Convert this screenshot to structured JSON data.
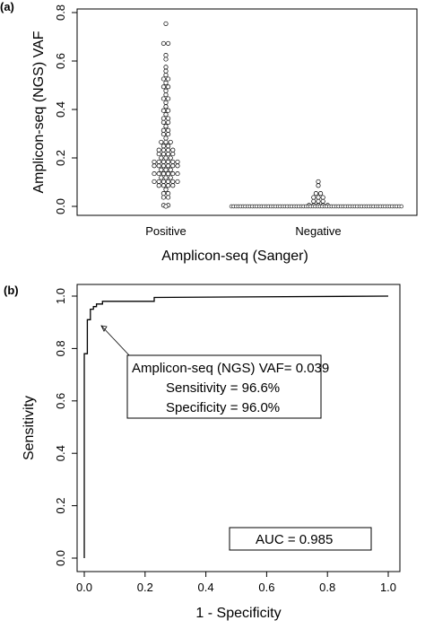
{
  "chart_data": [
    {
      "panel": "(a)",
      "type": "scatter",
      "style": "beeswarm strip chart",
      "categories": [
        "Positive",
        "Negative"
      ],
      "xlabel": "Amplicon-seq (Sanger)",
      "ylabel": "Amplicon-seq (NGS) VAF",
      "ylim": [
        0,
        0.8
      ],
      "yticks": [
        "0.0",
        "0.2",
        "0.4",
        "0.6",
        "0.8"
      ],
      "series": [
        {
          "category": "Positive",
          "values": [
            0.76,
            0.68,
            0.67,
            0.62,
            0.6,
            0.58,
            0.56,
            0.55,
            0.53,
            0.52,
            0.51,
            0.5,
            0.49,
            0.48,
            0.46,
            0.45,
            0.44,
            0.43,
            0.42,
            0.4,
            0.39,
            0.38,
            0.37,
            0.36,
            0.35,
            0.34,
            0.33,
            0.32,
            0.31,
            0.3,
            0.29,
            0.28,
            0.27,
            0.26,
            0.26,
            0.25,
            0.25,
            0.24,
            0.24,
            0.23,
            0.23,
            0.22,
            0.22,
            0.21,
            0.21,
            0.2,
            0.2,
            0.2,
            0.19,
            0.19,
            0.19,
            0.18,
            0.18,
            0.18,
            0.17,
            0.17,
            0.17,
            0.16,
            0.16,
            0.16,
            0.15,
            0.15,
            0.15,
            0.14,
            0.14,
            0.14,
            0.13,
            0.13,
            0.13,
            0.12,
            0.12,
            0.12,
            0.11,
            0.11,
            0.11,
            0.1,
            0.1,
            0.1,
            0.09,
            0.09,
            0.08,
            0.08,
            0.07,
            0.06,
            0.05,
            0.04,
            0.03,
            0.01,
            0.0
          ]
        },
        {
          "category": "Negative",
          "values": [
            0.11,
            0.08,
            0.06,
            0.05,
            0.04,
            0.03,
            0.03,
            0.02,
            0.02,
            0.02,
            0.01,
            0.01,
            0.01,
            0.01,
            0.01
          ]
        }
      ]
    },
    {
      "panel": "(b)",
      "type": "line",
      "style": "ROC curve",
      "xlabel": "1 - Specificity",
      "ylabel": "Sensitivity",
      "xlim": [
        0,
        1
      ],
      "ylim": [
        0,
        1
      ],
      "xticks": [
        "0.0",
        "0.2",
        "0.4",
        "0.6",
        "0.8",
        "1.0"
      ],
      "yticks": [
        "0.0",
        "0.2",
        "0.4",
        "0.6",
        "0.8",
        "1.0"
      ],
      "series": [
        {
          "x": [
            0.0,
            0.0,
            0.0,
            0.01,
            0.01,
            0.02,
            0.02,
            0.03,
            0.03,
            0.04,
            0.04,
            0.06,
            0.06,
            0.23,
            0.23,
            1.0
          ],
          "y": [
            0.0,
            0.78,
            0.78,
            0.78,
            0.91,
            0.91,
            0.95,
            0.95,
            0.96,
            0.96,
            0.97,
            0.97,
            0.98,
            0.98,
            0.995,
            1.0
          ]
        }
      ],
      "annotation": {
        "point": [
          0.04,
          0.966
        ],
        "lines": [
          "Amplicon-seq (NGS) VAF= 0.039",
          "Sensitivity = 96.6%",
          "Specificity = 96.0%"
        ]
      },
      "auc_label": "AUC = 0.985"
    }
  ]
}
